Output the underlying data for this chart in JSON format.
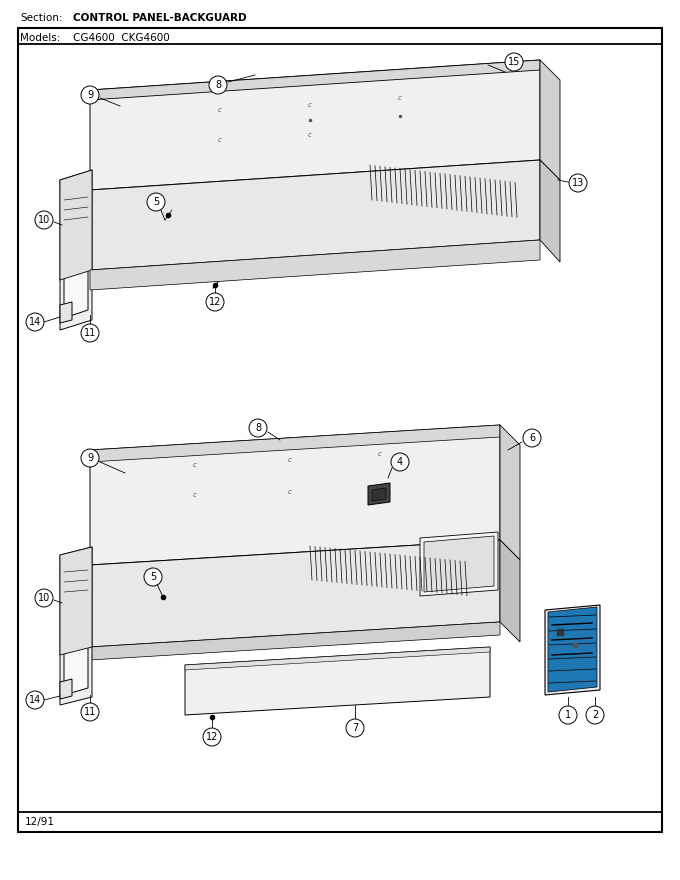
{
  "title_section": "Section:",
  "title_section_value": "CONTROL PANEL-BACKGUARD",
  "title_models": "Models:",
  "title_models_value": "CG4600  CKG4600",
  "footer": "12/91",
  "bg_color": "#ffffff",
  "fig_width": 6.8,
  "fig_height": 8.8,
  "dpi": 100
}
